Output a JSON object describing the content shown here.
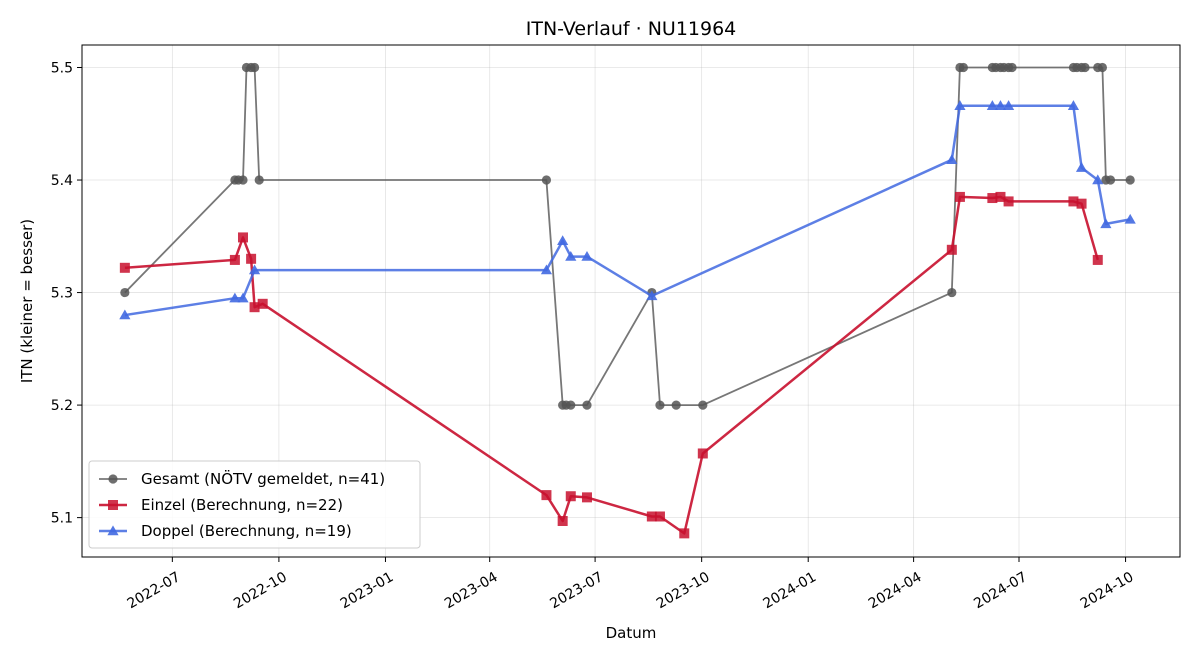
{
  "chart_data": {
    "type": "line",
    "title": "ITN-Verlauf · NU11964",
    "xlabel": "Datum",
    "ylabel": "ITN  (kleiner = besser)",
    "x_type": "date",
    "xlim": [
      "2022-04-14",
      "2024-11-17"
    ],
    "ylim": [
      5.065,
      5.52
    ],
    "x_ticks": [
      "2022-07-01",
      "2022-10-01",
      "2023-01-01",
      "2023-04-01",
      "2023-07-01",
      "2023-10-01",
      "2024-01-01",
      "2024-04-01",
      "2024-07-01",
      "2024-10-01"
    ],
    "x_tick_labels": [
      "2022-07",
      "2022-10",
      "2023-01",
      "2023-04",
      "2023-07",
      "2023-10",
      "2024-01",
      "2024-04",
      "2024-07",
      "2024-10"
    ],
    "y_ticks": [
      5.1,
      5.2,
      5.3,
      5.4,
      5.5
    ],
    "y_tick_labels": [
      "5.1",
      "5.2",
      "5.3",
      "5.4",
      "5.5"
    ],
    "grid": true,
    "legend_position": "lower-left",
    "series": [
      {
        "name": "Gesamt (NÖTV gemeldet, n=41)",
        "color": "#555555",
        "marker": "circle",
        "points": [
          [
            "2022-05-21",
            5.3
          ],
          [
            "2022-08-24",
            5.4
          ],
          [
            "2022-08-27",
            5.4
          ],
          [
            "2022-08-31",
            5.4
          ],
          [
            "2022-09-03",
            5.5
          ],
          [
            "2022-09-07",
            5.5
          ],
          [
            "2022-09-10",
            5.5
          ],
          [
            "2022-09-14",
            5.4
          ],
          [
            "2023-05-20",
            5.4
          ],
          [
            "2023-06-03",
            5.2
          ],
          [
            "2023-06-06",
            5.2
          ],
          [
            "2023-06-10",
            5.2
          ],
          [
            "2023-06-24",
            5.2
          ],
          [
            "2023-08-19",
            5.3
          ],
          [
            "2023-08-26",
            5.2
          ],
          [
            "2023-09-09",
            5.2
          ],
          [
            "2023-10-02",
            5.2
          ],
          [
            "2024-05-04",
            5.3
          ],
          [
            "2024-05-11",
            5.5
          ],
          [
            "2024-05-14",
            5.5
          ],
          [
            "2024-06-08",
            5.5
          ],
          [
            "2024-06-11",
            5.5
          ],
          [
            "2024-06-15",
            5.5
          ],
          [
            "2024-06-18",
            5.5
          ],
          [
            "2024-06-22",
            5.5
          ],
          [
            "2024-06-25",
            5.5
          ],
          [
            "2024-08-17",
            5.5
          ],
          [
            "2024-08-20",
            5.5
          ],
          [
            "2024-08-24",
            5.5
          ],
          [
            "2024-08-27",
            5.5
          ],
          [
            "2024-09-07",
            5.5
          ],
          [
            "2024-09-11",
            5.5
          ],
          [
            "2024-09-14",
            5.4
          ],
          [
            "2024-09-18",
            5.4
          ],
          [
            "2024-10-05",
            5.4
          ]
        ]
      },
      {
        "name": "Einzel (Berechnung, n=22)",
        "color": "#c8102e",
        "marker": "square",
        "points": [
          [
            "2022-05-21",
            5.322
          ],
          [
            "2022-08-24",
            5.329
          ],
          [
            "2022-08-31",
            5.349
          ],
          [
            "2022-09-07",
            5.33
          ],
          [
            "2022-09-10",
            5.287
          ],
          [
            "2022-09-17",
            5.29
          ],
          [
            "2023-05-20",
            5.12
          ],
          [
            "2023-06-03",
            5.097
          ],
          [
            "2023-06-10",
            5.119
          ],
          [
            "2023-06-24",
            5.118
          ],
          [
            "2023-08-19",
            5.101
          ],
          [
            "2023-08-26",
            5.101
          ],
          [
            "2023-09-16",
            5.086
          ],
          [
            "2023-10-02",
            5.157
          ],
          [
            "2024-05-04",
            5.338
          ],
          [
            "2024-05-11",
            5.385
          ],
          [
            "2024-06-08",
            5.384
          ],
          [
            "2024-06-15",
            5.385
          ],
          [
            "2024-06-22",
            5.381
          ],
          [
            "2024-08-17",
            5.381
          ],
          [
            "2024-08-24",
            5.379
          ],
          [
            "2024-09-07",
            5.329
          ]
        ]
      },
      {
        "name": "Doppel (Berechnung, n=19)",
        "color": "#4169e1",
        "marker": "triangle",
        "points": [
          [
            "2022-05-21",
            5.28
          ],
          [
            "2022-08-24",
            5.295
          ],
          [
            "2022-08-31",
            5.295
          ],
          [
            "2022-09-10",
            5.32
          ],
          [
            "2023-05-20",
            5.32
          ],
          [
            "2023-06-03",
            5.346
          ],
          [
            "2023-06-10",
            5.332
          ],
          [
            "2023-06-24",
            5.332
          ],
          [
            "2023-08-19",
            5.297
          ],
          [
            "2024-05-04",
            5.418
          ],
          [
            "2024-05-11",
            5.466
          ],
          [
            "2024-06-08",
            5.466
          ],
          [
            "2024-06-15",
            5.466
          ],
          [
            "2024-06-22",
            5.466
          ],
          [
            "2024-08-17",
            5.466
          ],
          [
            "2024-08-24",
            5.411
          ],
          [
            "2024-09-07",
            5.4
          ],
          [
            "2024-09-14",
            5.361
          ],
          [
            "2024-10-05",
            5.365
          ]
        ]
      }
    ]
  }
}
